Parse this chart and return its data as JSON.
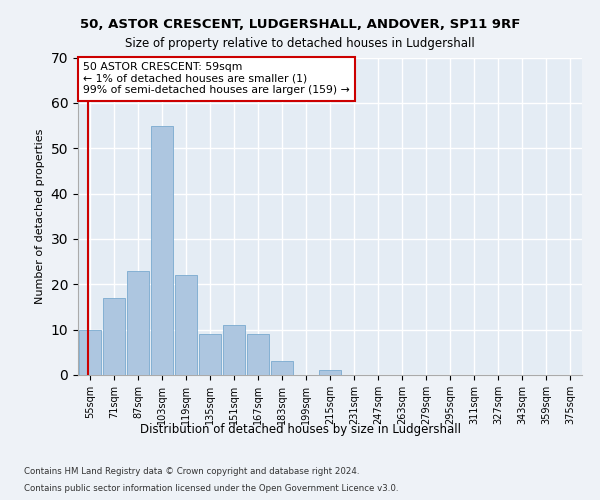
{
  "title1": "50, ASTOR CRESCENT, LUDGERSHALL, ANDOVER, SP11 9RF",
  "title2": "Size of property relative to detached houses in Ludgershall",
  "xlabel": "Distribution of detached houses by size in Ludgershall",
  "ylabel": "Number of detached properties",
  "bar_color": "#adc6e0",
  "bar_edge_color": "#7aaacf",
  "categories": [
    "55sqm",
    "71sqm",
    "87sqm",
    "103sqm",
    "119sqm",
    "135sqm",
    "151sqm",
    "167sqm",
    "183sqm",
    "199sqm",
    "215sqm",
    "231sqm",
    "247sqm",
    "263sqm",
    "279sqm",
    "295sqm",
    "311sqm",
    "327sqm",
    "343sqm",
    "359sqm",
    "375sqm"
  ],
  "values": [
    10,
    17,
    23,
    55,
    22,
    9,
    11,
    9,
    3,
    0,
    1,
    0,
    0,
    0,
    0,
    0,
    0,
    0,
    0,
    0,
    0
  ],
  "annotation_text": "50 ASTOR CRESCENT: 59sqm\n← 1% of detached houses are smaller (1)\n99% of semi-detached houses are larger (159) →",
  "ylim": [
    0,
    70
  ],
  "yticks": [
    0,
    10,
    20,
    30,
    40,
    50,
    60,
    70
  ],
  "footer1": "Contains HM Land Registry data © Crown copyright and database right 2024.",
  "footer2": "Contains public sector information licensed under the Open Government Licence v3.0.",
  "bg_color": "#eef2f7",
  "plot_bg_color": "#e4ecf4",
  "grid_color": "#ffffff",
  "annotation_box_color": "#ffffff",
  "annotation_box_edge": "#cc0000",
  "marker_line_color": "#cc0000"
}
